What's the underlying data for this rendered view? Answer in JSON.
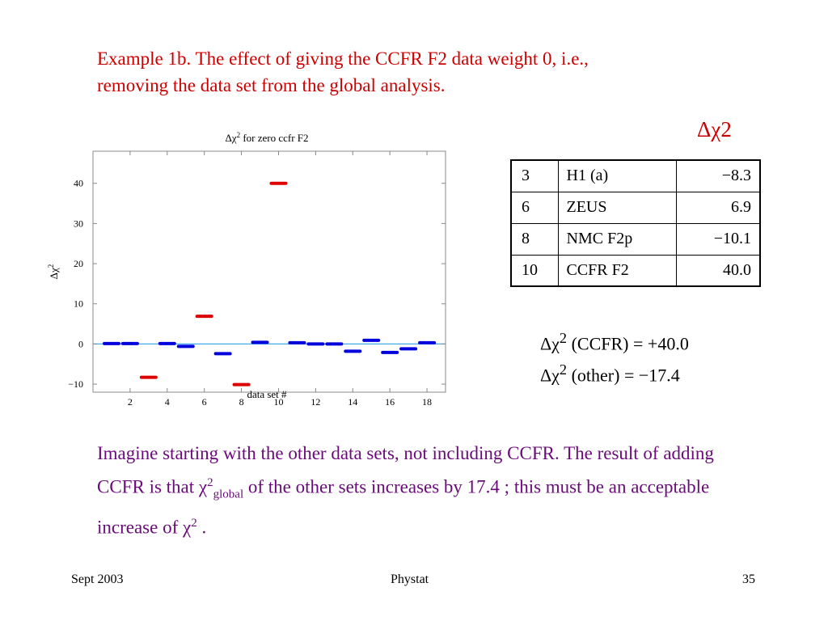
{
  "slide": {
    "title_line1": "Example 1b. The effect of giving the CCFR F2 data weight 0, i.e.,",
    "title_line2": "removing the data set from the global analysis.",
    "delta_heading": "Δχ2"
  },
  "table": {
    "rows": [
      [
        "3",
        "H1 (a)",
        "−8.3"
      ],
      [
        "6",
        "ZEUS",
        "6.9"
      ],
      [
        "8",
        "NMC F2p",
        "−10.1"
      ],
      [
        "10",
        "CCFR F2",
        "40.0"
      ]
    ]
  },
  "summary": {
    "line1_prefix": "Δχ",
    "line1_sup": "2",
    "line1_rest": " (CCFR) = +40.0",
    "line2_prefix": "Δχ",
    "line2_sup": "2",
    "line2_rest": " (other) = −17.4"
  },
  "body": {
    "part1": "Imagine starting with the other data sets, not including CCFR. The result of adding CCFR is that ",
    "chi": "χ",
    "sup1": "2",
    "sub1": "global",
    "part2": " of the other sets increases by 17.4 ; this must be an acceptable increase of ",
    "chi2": "χ",
    "sup2": "2",
    "part3": " ."
  },
  "footer": {
    "left": "Sept 2003",
    "center": "Phystat",
    "right": "35"
  },
  "chart_data": {
    "type": "scatter",
    "title_prefix": "Δχ",
    "title_sup": "2",
    "title_rest": " for zero ccfr F2",
    "xlabel": "data set #",
    "ylabel_prefix": "Δχ",
    "ylabel_sup": "2",
    "xlim": [
      0,
      19
    ],
    "ylim": [
      -12,
      48
    ],
    "xticks": [
      2,
      4,
      6,
      8,
      10,
      12,
      14,
      16,
      18
    ],
    "yticks": [
      -10,
      0,
      10,
      20,
      30,
      40
    ],
    "ytick_labels": [
      "−10",
      "0",
      "10",
      "20",
      "30",
      "40"
    ],
    "reference_line": 0,
    "colors": {
      "normal": "#0000dd",
      "highlight": "#dd0000",
      "axis": "#888888",
      "zero_line": "#44aaee"
    },
    "points": [
      {
        "x": 1,
        "y": 0.1,
        "highlight": false
      },
      {
        "x": 2,
        "y": 0.1,
        "highlight": false
      },
      {
        "x": 3,
        "y": -8.3,
        "highlight": true
      },
      {
        "x": 4,
        "y": 0.1,
        "highlight": false
      },
      {
        "x": 5,
        "y": -0.6,
        "highlight": false
      },
      {
        "x": 6,
        "y": 6.9,
        "highlight": true
      },
      {
        "x": 7,
        "y": -2.4,
        "highlight": false
      },
      {
        "x": 8,
        "y": -10.1,
        "highlight": true
      },
      {
        "x": 9,
        "y": 0.4,
        "highlight": false
      },
      {
        "x": 10,
        "y": 40.0,
        "highlight": true
      },
      {
        "x": 11,
        "y": 0.3,
        "highlight": false
      },
      {
        "x": 12,
        "y": 0.0,
        "highlight": false
      },
      {
        "x": 13,
        "y": 0.0,
        "highlight": false
      },
      {
        "x": 14,
        "y": -1.8,
        "highlight": false
      },
      {
        "x": 15,
        "y": 0.9,
        "highlight": false
      },
      {
        "x": 16,
        "y": -2.1,
        "highlight": false
      },
      {
        "x": 17,
        "y": -1.2,
        "highlight": false
      },
      {
        "x": 18,
        "y": 0.3,
        "highlight": false
      }
    ]
  }
}
